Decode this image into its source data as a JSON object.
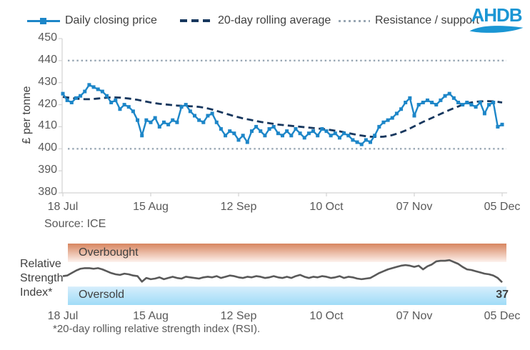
{
  "legend": {
    "items": [
      {
        "label": "Daily closing price",
        "style": "line-with-square-marker"
      },
      {
        "label": "20-day rolling average",
        "style": "dashed"
      },
      {
        "label": "Resistance / support",
        "style": "dotted"
      }
    ]
  },
  "logo": {
    "text": "AHDB"
  },
  "colors": {
    "price": "#1d86c8",
    "moving_average": "#17375e",
    "levels": "#98a6b3",
    "rsi_line": "#595959",
    "axis": "#d3d3d3",
    "text": "#404040",
    "text_muted": "#595959",
    "logo": "#1a96d4",
    "overbought_top": "#d7855f",
    "overbought_bottom": "#fdf1ec",
    "oversold_top": "#d6eefc",
    "oversold_bottom": "#a0dcf7"
  },
  "price_chart": {
    "ylabel": "£ per tonne",
    "source": "Source: ICE"
  },
  "rsi_chart": {
    "side_label": "Relative Strength Index*",
    "footnote": "*20-day rolling relative strength index (RSI).",
    "last_value": "37"
  },
  "chart_data": [
    {
      "type": "line",
      "ylabel": "£ per tonne",
      "ylim": [
        380,
        450
      ],
      "yticks": [
        380,
        390,
        400,
        410,
        420,
        430,
        440,
        450
      ],
      "xticklabels": [
        "18 Jul",
        "15 Aug",
        "12 Sep",
        "10 Oct",
        "07 Nov",
        "05 Dec"
      ],
      "resistance": 440,
      "support": 400,
      "grid": false,
      "legend_position": "top",
      "source": "Source: ICE",
      "series": [
        {
          "name": "Daily closing price",
          "values": [
            425,
            422,
            421,
            423,
            424,
            426,
            429,
            428,
            427,
            426,
            424,
            421,
            422,
            418,
            420,
            419,
            417,
            413,
            406,
            413,
            412,
            414,
            410,
            412,
            411,
            413,
            412,
            419,
            420,
            417,
            415,
            413,
            412,
            415,
            416,
            412,
            409,
            406,
            408,
            407,
            404,
            406,
            403,
            408,
            410,
            408,
            406,
            409,
            410,
            407,
            406,
            408,
            406,
            409,
            407,
            405,
            407,
            408,
            406,
            409,
            408,
            406,
            407,
            405,
            407,
            406,
            404,
            403,
            402,
            404,
            403,
            406,
            410,
            412,
            413,
            414,
            416,
            418,
            421,
            423,
            415,
            420,
            421,
            422,
            421,
            420,
            422,
            424,
            425,
            423,
            421,
            420,
            421,
            420,
            419,
            421,
            416,
            420,
            421,
            410,
            411
          ]
        },
        {
          "name": "20-day rolling average",
          "values": [
            423.5,
            423.3,
            423.0,
            422.8,
            422.6,
            422.5,
            422.5,
            422.6,
            422.8,
            423.0,
            423.2,
            423.3,
            423.3,
            423.2,
            423.0,
            422.8,
            422.5,
            422.2,
            421.8,
            421.4,
            421.0,
            420.7,
            420.4,
            420.2,
            420.0,
            419.8,
            419.6,
            419.5,
            419.4,
            419.3,
            419.2,
            419.0,
            418.7,
            418.3,
            417.8,
            417.2,
            416.6,
            416.0,
            415.4,
            414.8,
            414.3,
            413.8,
            413.4,
            413.0,
            412.6,
            412.2,
            411.9,
            411.6,
            411.3,
            411.0,
            410.8,
            410.6,
            410.4,
            410.2,
            410.0,
            409.8,
            409.6,
            409.4,
            409.2,
            409.0,
            408.8,
            408.5,
            408.2,
            407.9,
            407.5,
            407.1,
            406.7,
            406.3,
            406.0,
            405.7,
            405.5,
            405.4,
            405.4,
            405.5,
            405.8,
            406.2,
            406.8,
            407.5,
            408.3,
            409.2,
            410.2,
            411.2,
            412.2,
            413.1,
            414.0,
            414.9,
            415.8,
            416.7,
            417.6,
            418.4,
            419.2,
            420.0,
            420.6,
            421.0,
            421.3,
            421.5,
            421.6,
            421.6,
            421.5,
            421.3,
            421.0
          ]
        }
      ]
    },
    {
      "type": "line",
      "name": "Relative Strength Index (RSI)",
      "ylim": [
        0,
        100
      ],
      "xticklabels": [
        "18 Jul",
        "15 Aug",
        "12 Sep",
        "10 Oct",
        "07 Nov",
        "05 Dec"
      ],
      "bands": [
        {
          "label": "Overbought",
          "range": [
            70,
            100
          ]
        },
        {
          "label": "Oversold",
          "range": [
            0,
            30
          ]
        }
      ],
      "last_value": 37,
      "footnote": "*20-day rolling relative strength index (RSI).",
      "values": [
        47,
        48,
        52,
        56,
        59,
        60,
        60,
        59,
        60,
        58,
        55,
        52,
        50,
        49,
        51,
        50,
        48,
        47,
        38,
        44,
        42,
        43,
        45,
        42,
        44,
        46,
        44,
        43,
        46,
        45,
        44,
        43,
        45,
        46,
        45,
        47,
        44,
        46,
        48,
        47,
        45,
        44,
        46,
        45,
        47,
        46,
        44,
        45,
        47,
        45,
        44,
        46,
        44,
        47,
        49,
        46,
        44,
        46,
        45,
        47,
        46,
        44,
        45,
        47,
        44,
        46,
        45,
        43,
        42,
        43,
        44,
        48,
        52,
        55,
        58,
        60,
        62,
        64,
        65,
        64,
        62,
        64,
        58,
        63,
        66,
        71,
        72,
        72,
        73,
        70,
        67,
        62,
        58,
        57,
        55,
        53,
        51,
        50,
        48,
        44,
        37
      ]
    }
  ]
}
